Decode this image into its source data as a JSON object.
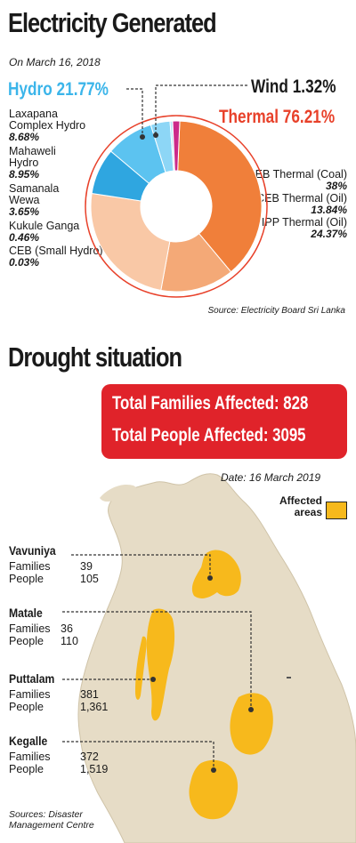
{
  "electricity": {
    "title": "Electricity Generated",
    "date": "On March 16, 2018",
    "hydro_label": "Hydro 21.77%",
    "wind_label": "Wind 1.32%",
    "thermal_label": "Thermal 76.21%",
    "source": "Source:  Electricity Board Sri Lanka",
    "hydro_items": [
      {
        "name": "Laxapana Complex Hydro",
        "line1": "Laxapana",
        "line2": "Complex Hydro",
        "value": "8.68%"
      },
      {
        "name": "Mahaweli Hydro",
        "line1": "Mahaweli",
        "line2": "Hydro",
        "value": "8.95%"
      },
      {
        "name": "Samanala Wewa",
        "line1": "Samanala",
        "line2": "Wewa",
        "value": "3.65%"
      },
      {
        "name": "Kukule Ganga",
        "line1": "Kukule Ganga",
        "line2": "",
        "value": "0.46%"
      },
      {
        "name": "CEB (Small Hydro)",
        "line1": "CEB (Small Hydro)",
        "line2": "",
        "value": "0.03%"
      }
    ],
    "thermal_items": [
      {
        "name": "CEB Thermal (Coal)",
        "value": "38%"
      },
      {
        "name": "CEB Thermal (Oil)",
        "value": "13.84%"
      },
      {
        "name": "IPP Thermal (Oil)",
        "value": "24.37%"
      }
    ],
    "colors": {
      "hydro": "#3bb5ea",
      "thermal": "#e8412a",
      "wind": "#cc2a8a"
    }
  },
  "chart_data": {
    "type": "pie",
    "title": "Electricity Generated",
    "subtitle": "On March 16, 2018",
    "slices": [
      {
        "label": "CEB Thermal (Coal)",
        "value": 38,
        "group": "Thermal",
        "color": "#f07f3a"
      },
      {
        "label": "CEB Thermal (Oil)",
        "value": 13.84,
        "group": "Thermal",
        "color": "#f4a977"
      },
      {
        "label": "IPP Thermal (Oil)",
        "value": 24.37,
        "group": "Thermal",
        "color": "#f9c8a6"
      },
      {
        "label": "Laxapana Complex Hydro",
        "value": 8.68,
        "group": "Hydro",
        "color": "#2fa6e0"
      },
      {
        "label": "Mahaweli Hydro",
        "value": 8.95,
        "group": "Hydro",
        "color": "#5cc3f0"
      },
      {
        "label": "Samanala Wewa",
        "value": 3.65,
        "group": "Hydro",
        "color": "#8dd6f6"
      },
      {
        "label": "Kukule Ganga",
        "value": 0.46,
        "group": "Hydro",
        "color": "#b9e6fa"
      },
      {
        "label": "CEB (Small Hydro)",
        "value": 0.03,
        "group": "Hydro",
        "color": "#d6f0fc"
      },
      {
        "label": "Wind",
        "value": 1.32,
        "group": "Wind",
        "color": "#cc2a8a"
      }
    ]
  },
  "drought": {
    "title": "Drought situation",
    "families_total": "Total Families Affected:  828",
    "people_total": "Total People Affected:  3095",
    "date": "Date: 16 March 2019",
    "legend_line1": "Affected",
    "legend_line2": "areas",
    "legend_color": "#f7b91c",
    "districts": [
      {
        "name": "Vavuniya",
        "families_label": "Families",
        "families": "39",
        "people_label": "People",
        "people": "105"
      },
      {
        "name": "Matale",
        "families_label": "Families",
        "families": "36",
        "people_label": "People",
        "people": "110"
      },
      {
        "name": "Puttalam",
        "families_label": "Families",
        "families": "381",
        "people_label": "People",
        "people": "1,361"
      },
      {
        "name": "Kegalle",
        "families_label": "Families",
        "families": "372",
        "people_label": "People",
        "people": "1,519"
      }
    ],
    "source_line1": "Sources: Disaster",
    "source_line2": "Management Centre"
  }
}
